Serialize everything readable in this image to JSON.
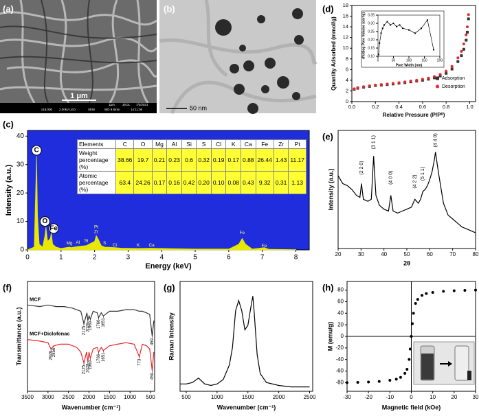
{
  "images": [
    {
      "label": "(a)",
      "scale_bar": "1 μm",
      "footer_top": [
        "1μm",
        "JEOL",
        "7/2/2021"
      ],
      "footer": [
        "x18,000",
        "2.00kV LED",
        "SEM",
        "WD 9.8mm",
        "14:11:06"
      ]
    },
    {
      "label": "(b)",
      "scale_bar": "50 nm"
    }
  ],
  "chart_data": [
    {
      "type": "area",
      "label": "(c)",
      "x_label": "Energy (keV)",
      "y_label": "Intensity (a.u.)",
      "background": "#1f2ddc",
      "xlim": [
        0,
        8.4
      ],
      "ylim": [
        0,
        42
      ],
      "xticks": [
        0,
        1,
        2,
        3,
        4,
        5,
        6,
        7,
        8
      ],
      "yticks": [
        0,
        10,
        20,
        30,
        40
      ],
      "x": [
        0,
        0.2,
        0.27,
        0.3,
        0.35,
        0.45,
        0.52,
        0.55,
        0.6,
        0.68,
        0.71,
        0.75,
        0.85,
        1.0,
        1.25,
        1.3,
        1.5,
        1.75,
        2.0,
        2.05,
        2.1,
        2.2,
        2.3,
        2.6,
        2.8,
        3.3,
        3.7,
        4.0,
        5.0,
        6.0,
        6.3,
        6.4,
        6.5,
        6.7,
        7.06,
        7.2,
        8.0
      ],
      "series": [
        {
          "color": "#e8e800",
          "values": [
            0,
            1,
            33,
            12,
            2,
            1,
            5,
            8,
            3,
            4,
            6,
            2,
            1,
            0.5,
            1,
            0.8,
            1.2,
            1.5,
            3,
            5,
            4,
            1.5,
            1,
            0.8,
            0.6,
            0.5,
            0.6,
            0.5,
            0.3,
            0.3,
            2,
            4,
            2,
            0.3,
            0.8,
            0.2,
            0.1
          ]
        }
      ],
      "annotations": [
        {
          "text": "C",
          "x": 0.27,
          "y": 35,
          "circled": true
        },
        {
          "text": "O",
          "x": 0.52,
          "y": 10,
          "circled": true
        },
        {
          "text": "Fe",
          "x": 0.78,
          "y": 7.5,
          "circled": true
        },
        {
          "text": "Mg",
          "x": 1.25,
          "y": 2.3
        },
        {
          "text": "Al",
          "x": 1.5,
          "y": 2.6
        },
        {
          "text": "Si",
          "x": 1.75,
          "y": 3.2
        },
        {
          "text": "Pt",
          "x": 2.05,
          "y": 8
        },
        {
          "text": "Zr",
          "x": 2.05,
          "y": 6.3
        },
        {
          "text": "S",
          "x": 2.3,
          "y": 2.3
        },
        {
          "text": "Cl",
          "x": 2.6,
          "y": 1.6
        },
        {
          "text": "K",
          "x": 3.3,
          "y": 1.6
        },
        {
          "text": "Ca",
          "x": 3.7,
          "y": 1.6
        },
        {
          "text": "Fe",
          "x": 6.4,
          "y": 6
        },
        {
          "text": "Fe",
          "x": 7.06,
          "y": 1.4
        }
      ],
      "table": {
        "header": [
          "Elements",
          "C",
          "O",
          "Mg",
          "Al",
          "Si",
          "S",
          "Cl",
          "K",
          "Ca",
          "Fe",
          "Zr",
          "Pt"
        ],
        "rows": [
          [
            "Weight percentage (%)",
            "38.66",
            "19.7",
            "0.21",
            "0.23",
            "0.6",
            "0.32",
            "0.19",
            "0.17",
            "0.88",
            "26.44",
            "1.43",
            "11.17"
          ],
          [
            "Atomic percentage (%)",
            "63.4",
            "24.26",
            "0.17",
            "0.16",
            "0.42",
            "0.20",
            "0.10",
            "0.08",
            "0.43",
            "9.32",
            "0.31",
            "1.13"
          ]
        ]
      }
    },
    {
      "type": "scatter",
      "label": "(d)",
      "x_label": "Relative Pressure (P/P⁰)",
      "y_label": "Quantity Adsorbed (mmol/g)",
      "legend": "lower right",
      "xlim": [
        0,
        1.05
      ],
      "ylim": [
        0,
        18
      ],
      "xticks": [
        {
          "value": 0,
          "label": "0.0"
        },
        0.2,
        0.4,
        0.6,
        0.8,
        {
          "value": 1,
          "label": "1.0"
        }
      ],
      "yticks": [
        0,
        2,
        4,
        6,
        8,
        10,
        12,
        14,
        16,
        18
      ],
      "x": [
        0.02,
        0.05,
        0.1,
        0.15,
        0.2,
        0.25,
        0.3,
        0.35,
        0.4,
        0.45,
        0.5,
        0.55,
        0.6,
        0.65,
        0.7,
        0.75,
        0.8,
        0.85,
        0.9,
        0.93,
        0.95,
        0.97,
        0.98,
        0.99
      ],
      "series": [
        {
          "name": "Adsorption",
          "color": "#333333",
          "marker": "square",
          "values": [
            2.3,
            2.5,
            2.7,
            2.85,
            3.0,
            3.1,
            3.2,
            3.3,
            3.45,
            3.55,
            3.7,
            3.85,
            4.0,
            4.2,
            4.45,
            4.8,
            5.3,
            6.1,
            7.5,
            8.6,
            9.8,
            11.5,
            13.0,
            15.5
          ]
        },
        {
          "name": "Desorption",
          "color": "#e8262b",
          "marker": "circle",
          "values": [
            2.4,
            2.6,
            2.8,
            2.95,
            3.1,
            3.2,
            3.3,
            3.4,
            3.55,
            3.7,
            3.85,
            4.0,
            4.2,
            4.4,
            4.7,
            5.1,
            5.7,
            6.6,
            8.2,
            9.4,
            10.8,
            12.5,
            14.0,
            16.3
          ]
        }
      ]
    },
    {
      "type": "line",
      "x_label": "Pore Width (nm)",
      "y_label": "dV/dlog Pore Volume (cm³/g)",
      "xlim": [
        0,
        200
      ],
      "ylim": [
        0.1,
        0.35
      ],
      "xticks": [
        0,
        50,
        100,
        150,
        200
      ],
      "yticks": [
        {
          "value": 0.1,
          "label": "0.10"
        },
        0.15,
        {
          "value": 0.2,
          "label": "0.20"
        },
        0.25,
        {
          "value": 0.3,
          "label": "0.30"
        },
        0.35
      ],
      "x": [
        2,
        5,
        10,
        15,
        20,
        30,
        40,
        50,
        60,
        70,
        80,
        100,
        120,
        140,
        160,
        180
      ],
      "series": [
        {
          "color": "#000000",
          "marker": "square",
          "values": [
            0.11,
            0.18,
            0.24,
            0.27,
            0.29,
            0.31,
            0.29,
            0.3,
            0.28,
            0.29,
            0.27,
            0.26,
            0.24,
            0.27,
            0.32,
            0.14
          ]
        }
      ]
    },
    {
      "type": "line",
      "label": "(e)",
      "x_label": "2θ",
      "y_label": "Intensity (a.u.)",
      "xlim": [
        20,
        80
      ],
      "ylim": [
        25,
        85
      ],
      "xticks": [
        20,
        30,
        40,
        50,
        60,
        70,
        80
      ],
      "x": [
        20,
        22,
        24,
        26,
        28,
        29.5,
        30.2,
        31,
        33,
        34.5,
        35.5,
        36.5,
        38,
        40,
        42,
        43,
        44,
        46,
        48,
        50,
        52,
        53.5,
        55,
        56,
        57,
        58,
        59,
        60,
        61,
        62,
        62.5,
        63,
        64,
        65,
        66,
        68,
        70,
        72,
        74,
        76,
        78,
        80
      ],
      "series": [
        {
          "color": "#000000",
          "values": [
            62,
            58,
            57,
            55,
            52,
            51,
            58,
            50,
            49,
            50,
            72,
            52,
            47,
            45,
            44,
            52,
            44,
            43,
            44,
            45,
            46,
            50,
            48,
            50,
            54,
            55,
            57,
            60,
            64,
            70,
            74,
            70,
            62,
            55,
            48,
            42,
            40,
            38,
            36,
            35,
            34,
            33
          ]
        }
      ],
      "annotations": [
        {
          "text": "(2 2 0)",
          "x": 30.2,
          "y": 66
        },
        {
          "text": "(3 1 1)",
          "x": 35.5,
          "y": 79
        },
        {
          "text": "(4 0 0)",
          "x": 43,
          "y": 61
        },
        {
          "text": "(4 2 2)",
          "x": 53.5,
          "y": 59
        },
        {
          "text": "(5 1 1)",
          "x": 57,
          "y": 63
        },
        {
          "text": "(4 4 0)",
          "x": 62.5,
          "y": 80
        }
      ]
    },
    {
      "type": "line",
      "label": "(f)",
      "x_label": "Wavenumber (cm⁻¹)",
      "y_label": "Transmittance (a.u.)",
      "legend": "inline",
      "xlim": [
        3500,
        400
      ],
      "ylim": [
        25,
        95
      ],
      "xticks": [
        3500,
        3000,
        2500,
        2000,
        1500,
        1000,
        500
      ],
      "series": [
        {
          "name": "MCF",
          "color": "#333333",
          "x": [
            3500,
            3200,
            3000,
            2800,
            2600,
            2400,
            2200,
            2125,
            2050,
            2029,
            2000,
            1969,
            1900,
            1800,
            1766,
            1700,
            1651,
            1500,
            1300,
            1100,
            900,
            773,
            700,
            600,
            520,
            459,
            420
          ],
          "values": [
            80,
            79,
            80,
            79,
            79,
            78,
            76,
            68,
            75,
            70,
            73,
            71,
            76,
            75,
            72,
            75,
            73,
            76,
            76,
            77,
            77,
            76,
            76,
            75,
            74,
            60,
            70
          ],
          "peaks": [
            2125,
            2029,
            1969,
            1766,
            1651,
            459
          ]
        },
        {
          "name": "MCF+Diclofenac",
          "color": "#e8262b",
          "x": [
            3500,
            3200,
            3000,
            2928,
            2856,
            2700,
            2500,
            2300,
            2200,
            2125,
            2060,
            2029,
            2000,
            1969,
            1900,
            1800,
            1766,
            1700,
            1651,
            1500,
            1300,
            1100,
            900,
            773,
            700,
            600,
            520,
            459,
            420
          ],
          "values": [
            58,
            57,
            56,
            52,
            54,
            55,
            55,
            53,
            50,
            43,
            50,
            44,
            50,
            46,
            52,
            53,
            50,
            53,
            51,
            54,
            55,
            56,
            55,
            47,
            55,
            54,
            52,
            38,
            50
          ],
          "peaks": [
            2928,
            2856,
            2125,
            2029,
            1969,
            1766,
            1651,
            773,
            459
          ]
        }
      ]
    },
    {
      "type": "line",
      "label": "(g)",
      "x_label": "Wavenumber (cm⁻¹)",
      "y_label": "Raman Intensity",
      "xlim": [
        400,
        2550
      ],
      "ylim": [
        0,
        75
      ],
      "xticks": [
        500,
        1000,
        1500,
        2000,
        2500
      ],
      "x": [
        400,
        500,
        600,
        700,
        800,
        900,
        1000,
        1100,
        1200,
        1250,
        1300,
        1350,
        1400,
        1450,
        1500,
        1550,
        1580,
        1600,
        1650,
        1700,
        1800,
        2000,
        2200,
        2400,
        2500
      ],
      "series": [
        {
          "color": "#000000",
          "values": [
            5,
            5,
            6,
            9,
            5,
            4,
            5,
            8,
            18,
            30,
            55,
            62,
            55,
            42,
            45,
            58,
            65,
            55,
            25,
            12,
            6,
            4,
            3,
            3,
            3
          ]
        }
      ]
    },
    {
      "type": "scatter",
      "label": "(h)",
      "x_label": "Magnetic field (kOe)",
      "y_label": "M (emu/g)",
      "zero_lines": true,
      "xlim": [
        -30,
        30
      ],
      "ylim": [
        -95,
        95
      ],
      "xticks": [
        -30,
        -20,
        -10,
        0,
        10,
        20,
        30
      ],
      "yticks": [
        -80,
        -60,
        -40,
        -20,
        0,
        20,
        40,
        60,
        80
      ],
      "x": [
        -30,
        -25,
        -20,
        -15,
        -10,
        -7,
        -5,
        -3,
        -2,
        -1,
        -0.5,
        0,
        0.5,
        1,
        2,
        3,
        5,
        7,
        10,
        15,
        20,
        25,
        30
      ],
      "series": [
        {
          "color": "#000000",
          "marker": "circle",
          "values": [
            -80,
            -79.5,
            -79,
            -78,
            -76,
            -74,
            -71,
            -64,
            -57,
            -40,
            -22,
            0,
            22,
            40,
            57,
            64,
            71,
            74,
            76,
            78,
            79,
            79.5,
            80
          ]
        }
      ]
    }
  ]
}
